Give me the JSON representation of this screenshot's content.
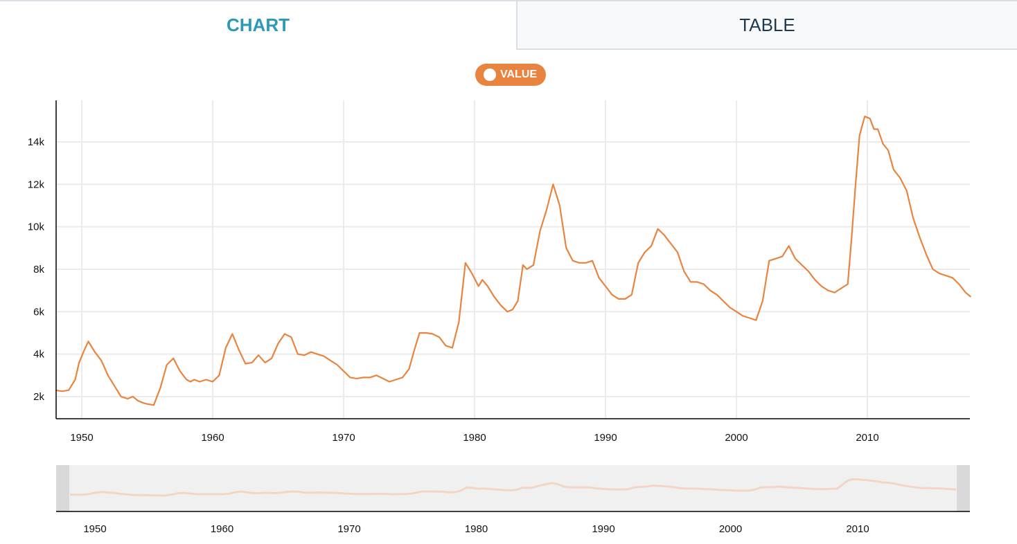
{
  "tabs": {
    "chart_label": "CHART",
    "table_label": "TABLE",
    "active": "CHART"
  },
  "legend": {
    "label": "VALUE",
    "color": "#e8843f"
  },
  "navigator": {
    "ticks": [
      "1950",
      "1960",
      "1970",
      "1980",
      "1990",
      "2000",
      "2010"
    ]
  },
  "chart_data": {
    "type": "line",
    "series": [
      {
        "name": "VALUE",
        "color": "#e8843f",
        "x": [
          1948.0,
          1948.5,
          1949.0,
          1949.5,
          1949.8,
          1950.2,
          1950.5,
          1951.0,
          1951.5,
          1952.0,
          1952.5,
          1953.0,
          1953.5,
          1953.9,
          1954.3,
          1954.7,
          1955.0,
          1955.5,
          1956.0,
          1956.5,
          1957.0,
          1957.5,
          1958.0,
          1958.3,
          1958.6,
          1959.0,
          1959.5,
          1960.0,
          1960.5,
          1961.0,
          1961.5,
          1962.0,
          1962.5,
          1963.0,
          1963.5,
          1964.0,
          1964.5,
          1965.0,
          1965.5,
          1966.0,
          1966.5,
          1967.0,
          1967.5,
          1968.0,
          1968.5,
          1969.0,
          1969.5,
          1970.0,
          1970.5,
          1971.0,
          1971.5,
          1972.0,
          1972.5,
          1973.0,
          1973.5,
          1974.0,
          1974.5,
          1975.0,
          1975.4,
          1975.8,
          1976.3,
          1976.8,
          1977.3,
          1977.8,
          1978.3,
          1978.8,
          1979.3,
          1979.8,
          1980.3,
          1980.6,
          1981.0,
          1981.5,
          1982.0,
          1982.5,
          1982.9,
          1983.3,
          1983.7,
          1984.0,
          1984.5,
          1985.0,
          1985.5,
          1986.0,
          1986.5,
          1987.0,
          1987.5,
          1988.0,
          1988.5,
          1989.0,
          1989.5,
          1990.0,
          1990.5,
          1991.0,
          1991.5,
          1992.0,
          1992.5,
          1993.0,
          1993.5,
          1994.0,
          1994.5,
          1995.0,
          1995.5,
          1996.0,
          1996.5,
          1997.0,
          1997.5,
          1998.0,
          1998.5,
          1999.0,
          1999.5,
          2000.0,
          2000.5,
          2001.0,
          2001.5,
          2002.0,
          2002.5,
          2003.0,
          2003.5,
          2004.0,
          2004.5,
          2005.0,
          2005.5,
          2006.0,
          2006.5,
          2007.0,
          2007.5,
          2008.0,
          2008.5,
          2008.8,
          2009.1,
          2009.4,
          2009.8,
          2010.2,
          2010.5,
          2010.8,
          2011.2,
          2011.6,
          2012.0,
          2012.5,
          2013.0,
          2013.5,
          2014.0,
          2014.5,
          2015.0,
          2015.5,
          2016.0,
          2016.5,
          2017.0,
          2017.5,
          2017.9
        ],
        "values": [
          2300,
          2250,
          2300,
          2800,
          3600,
          4200,
          4600,
          4100,
          3700,
          3000,
          2500,
          2000,
          1900,
          2000,
          1800,
          1700,
          1650,
          1600,
          2400,
          3500,
          3800,
          3200,
          2800,
          2700,
          2800,
          2700,
          2800,
          2700,
          3000,
          4300,
          4950,
          4200,
          3550,
          3600,
          3950,
          3600,
          3800,
          4500,
          4950,
          4800,
          4000,
          3950,
          4100,
          4000,
          3900,
          3700,
          3500,
          3200,
          2900,
          2850,
          2900,
          2900,
          3000,
          2850,
          2700,
          2800,
          2900,
          3300,
          4200,
          5000,
          5000,
          4950,
          4800,
          4400,
          4300,
          5500,
          8300,
          7800,
          7200,
          7500,
          7200,
          6700,
          6300,
          6000,
          6100,
          6500,
          8200,
          8000,
          8200,
          9800,
          10800,
          12000,
          11000,
          9000,
          8400,
          8300,
          8300,
          8400,
          7600,
          7200,
          6800,
          6600,
          6600,
          6800,
          8300,
          8800,
          9100,
          9900,
          9600,
          9200,
          8800,
          7900,
          7400,
          7400,
          7300,
          7000,
          6800,
          6500,
          6200,
          6000,
          5800,
          5700,
          5600,
          6500,
          8400,
          8500,
          8600,
          9100,
          8500,
          8200,
          7900,
          7500,
          7200,
          7000,
          6900,
          7100,
          7300,
          9500,
          12000,
          14300,
          15200,
          15100,
          14600,
          14600,
          13900,
          13600,
          12700,
          12300,
          11700,
          10400,
          9500,
          8700,
          8000,
          7800,
          7700,
          7600,
          7300,
          6900,
          6700
        ],
        "x_display_start": 1948.0,
        "x_display_end": 1948.0
      }
    ],
    "xticks": [
      "1950",
      "1960",
      "1970",
      "1980",
      "1990",
      "2000",
      "2010"
    ],
    "xtick_values": [
      1950,
      1960,
      1970,
      1980,
      1990,
      2000,
      2010
    ],
    "yticks": [
      "2k",
      "4k",
      "6k",
      "8k",
      "10k",
      "12k",
      "14k"
    ],
    "ytick_values": [
      2000,
      4000,
      6000,
      8000,
      10000,
      12000,
      14000
    ],
    "xlim": [
      1948.0,
      2017.9
    ],
    "ylim": [
      1000,
      16000
    ],
    "xlabel": "",
    "ylabel": "",
    "title": "",
    "grid": true,
    "legend_position": "top-center"
  }
}
